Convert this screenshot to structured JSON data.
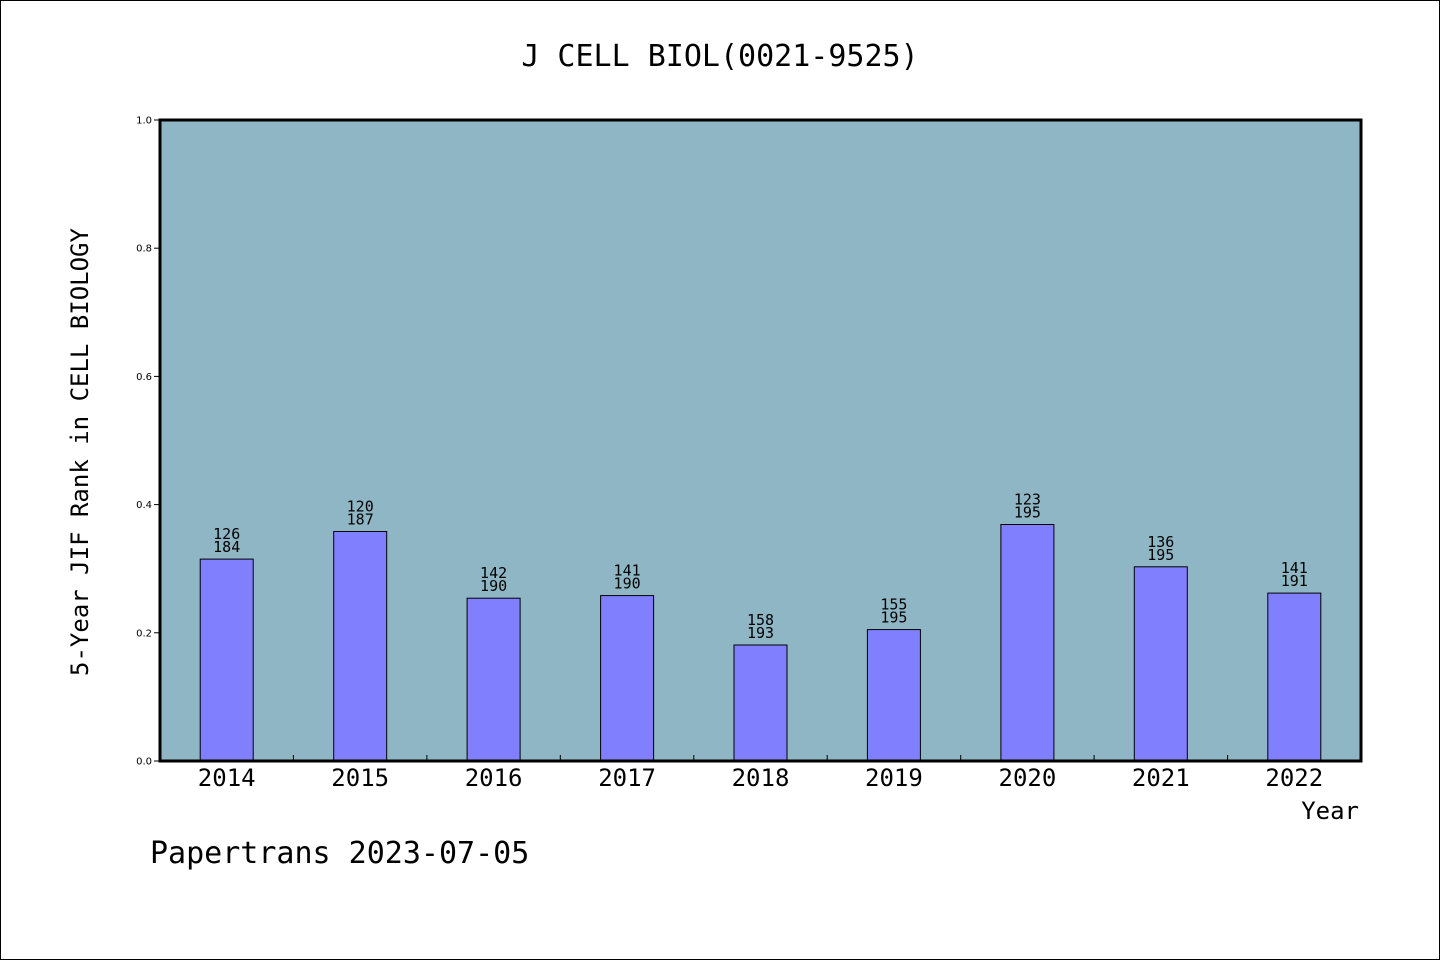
{
  "footer_text": "Papertrans 2023-07-05",
  "chart_data": {
    "type": "bar",
    "title": "J CELL BIOL(0021-9525)",
    "xlabel": "Year",
    "ylabel": "5-Year JIF Rank in CELL BIOLOGY",
    "ylim": [
      0,
      1.0
    ],
    "yticks": [
      "0.0",
      "0.2",
      "0.4",
      "0.6",
      "0.8",
      "1.0"
    ],
    "categories": [
      "2014",
      "2015",
      "2016",
      "2017",
      "2018",
      "2019",
      "2020",
      "2021",
      "2022"
    ],
    "rank": [
      126,
      120,
      142,
      141,
      158,
      155,
      123,
      136,
      141
    ],
    "total": [
      184,
      187,
      190,
      190,
      193,
      195,
      195,
      195,
      191
    ],
    "values": [
      0.315,
      0.358,
      0.254,
      0.258,
      0.181,
      0.205,
      0.369,
      0.303,
      0.262
    ],
    "grid": false,
    "colors": {
      "plot_background": "#8fb6c4",
      "bar": "#8080ff",
      "bar_edge": "#000000"
    }
  }
}
